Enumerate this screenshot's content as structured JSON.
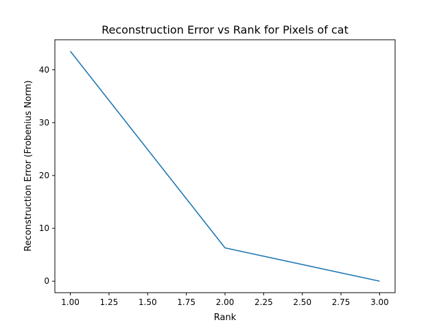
{
  "chart_data": {
    "type": "line",
    "title": "Reconstruction Error vs Rank for Pixels of cat",
    "xlabel": "Rank",
    "ylabel": "Reconstruction Error (Frobenius Norm)",
    "x": [
      1.0,
      2.0,
      3.0
    ],
    "series": [
      {
        "name": "",
        "values": [
          43.5,
          6.3,
          0.0
        ],
        "color": "#1f77b4"
      }
    ],
    "xlim": [
      0.9,
      3.1
    ],
    "ylim": [
      -2.175,
      45.675
    ],
    "xticks": [
      1.0,
      1.25,
      1.5,
      1.75,
      2.0,
      2.25,
      2.5,
      2.75,
      3.0
    ],
    "xtick_labels": [
      "1.00",
      "1.25",
      "1.50",
      "1.75",
      "2.00",
      "2.25",
      "2.50",
      "2.75",
      "3.00"
    ],
    "yticks": [
      0,
      10,
      20,
      30,
      40
    ],
    "ytick_labels": [
      "0",
      "10",
      "20",
      "30",
      "40"
    ],
    "grid": false,
    "legend": "none"
  }
}
